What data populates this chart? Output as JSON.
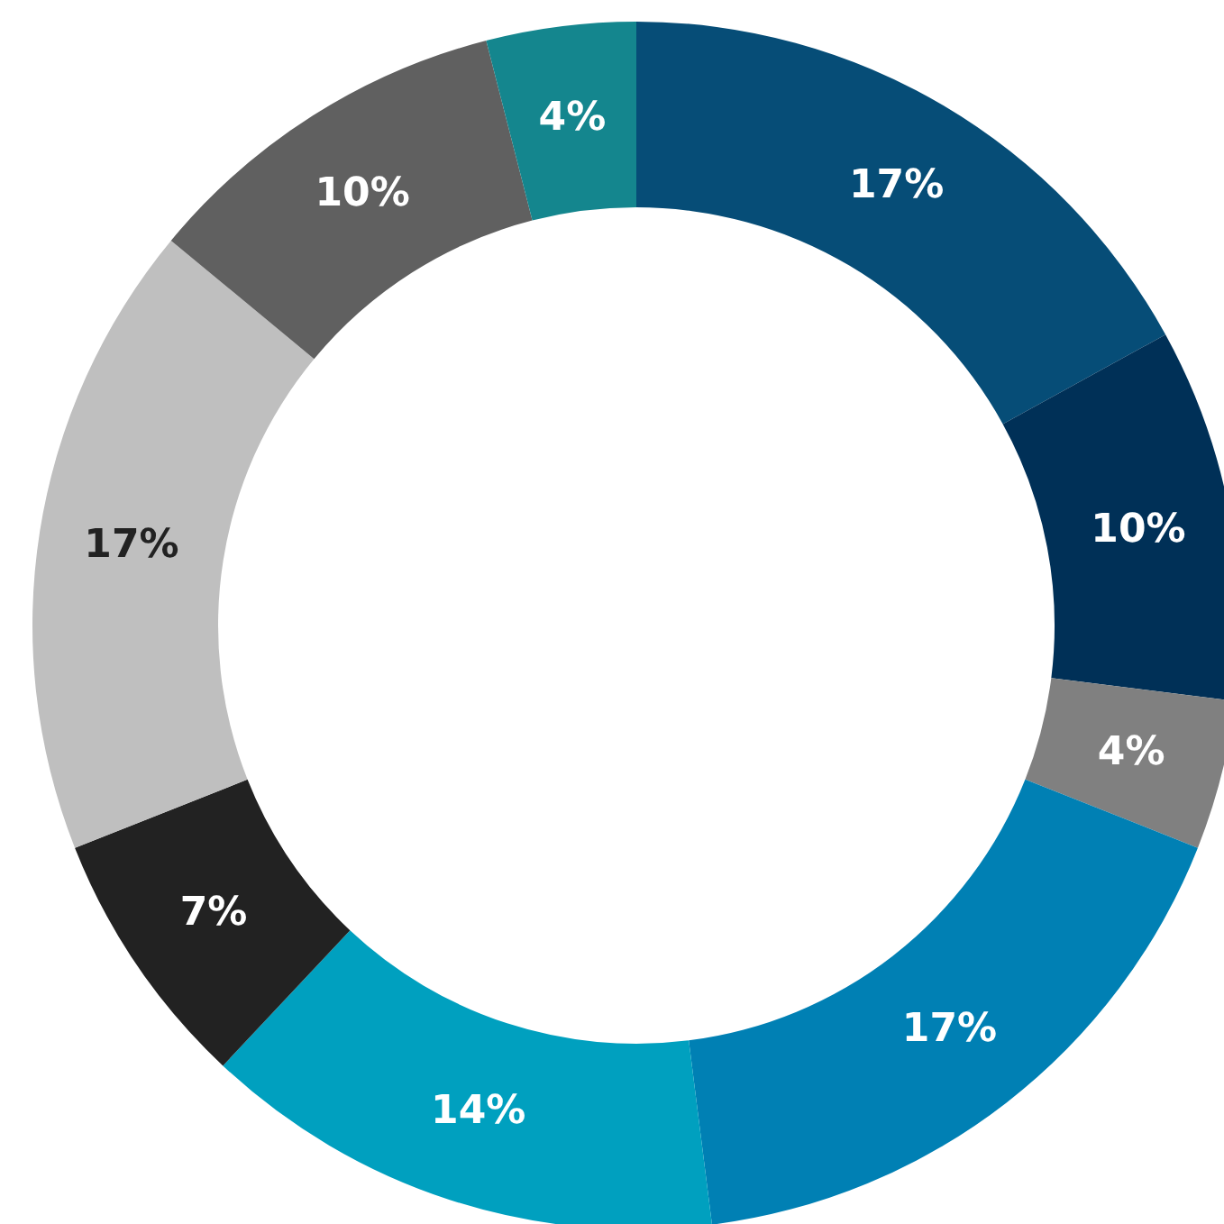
{
  "chart_data": {
    "type": "donut",
    "categories": [
      null,
      null,
      null,
      null,
      null,
      null,
      null,
      null,
      null
    ],
    "values": [
      17,
      10,
      4,
      17,
      14,
      7,
      17,
      10,
      4
    ],
    "colors": [
      "#064d77",
      "#003057",
      "#808080",
      "#0080b4",
      "#00a0bf",
      "#222222",
      "#bfbfbf",
      "#606060",
      "#14868e"
    ],
    "value_labels": [
      "17%",
      "10%",
      "4%",
      "17%",
      "14%",
      "7%",
      "17%",
      "10%",
      "4%"
    ],
    "legend": false
  }
}
